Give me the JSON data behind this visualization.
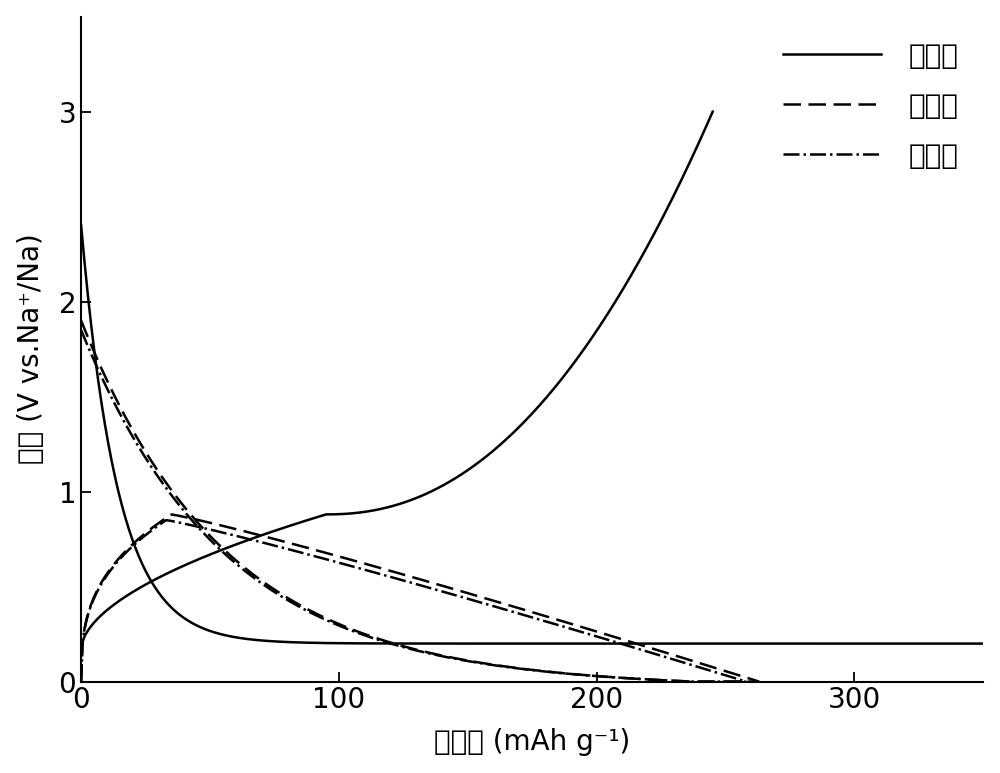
{
  "xlabel": "比容量 (mAh g⁻¹)",
  "ylabel": "电压 (V vs.Na⁺/Na)",
  "xlim": [
    0,
    350
  ],
  "ylim": [
    0,
    3.5
  ],
  "ylim_display": [
    0,
    3.0
  ],
  "yticks": [
    0,
    1,
    2,
    3
  ],
  "xticks": [
    0,
    100,
    200,
    300
  ],
  "legend_labels": [
    "第一圈",
    "第二圈",
    "第三圈"
  ],
  "line_color": "#000000",
  "line_width": 1.8,
  "background_color": "#ffffff",
  "font_size": 20,
  "legend_font_size": 20
}
